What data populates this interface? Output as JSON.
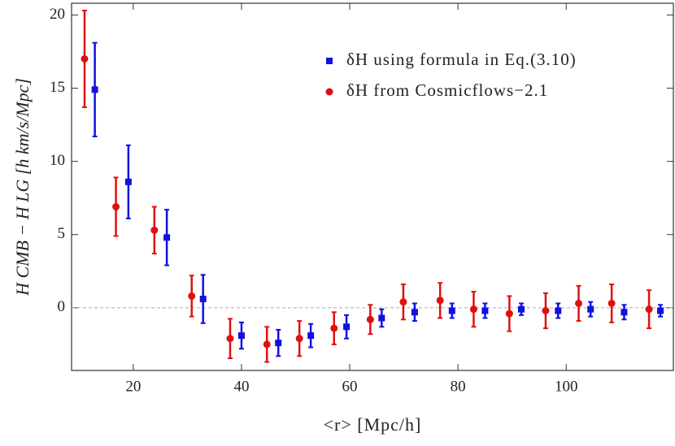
{
  "chart_data": {
    "type": "errorbar_scatter",
    "xlabel": "<r> [Mpc/h]",
    "ylabel": "H CMB − H LG   [h km/s/Mpc]",
    "xlim": [
      8.6,
      119.8
    ],
    "ylim": [
      -4.28,
      20.8
    ],
    "xticks": [
      20,
      40,
      60,
      80,
      100
    ],
    "yticks": [
      0,
      5,
      10,
      15,
      20
    ],
    "reference_line": 0,
    "series": [
      {
        "name": "δH  using formula in Eq.(3.10)",
        "color": "#1010e0",
        "marker": "square",
        "x": [
          12.9,
          19.1,
          26.2,
          32.9,
          40.0,
          46.8,
          52.8,
          59.4,
          65.9,
          72.0,
          78.9,
          85.0,
          91.7,
          98.5,
          104.5,
          110.7,
          117.4
        ],
        "values": [
          14.9,
          8.6,
          4.8,
          0.6,
          -1.9,
          -2.4,
          -1.9,
          -1.3,
          -0.7,
          -0.3,
          -0.2,
          -0.2,
          -0.1,
          -0.2,
          -0.1,
          -0.3,
          -0.2
        ],
        "errors": [
          3.2,
          2.5,
          1.9,
          1.65,
          0.9,
          0.9,
          0.8,
          0.8,
          0.6,
          0.6,
          0.5,
          0.5,
          0.4,
          0.5,
          0.5,
          0.5,
          0.4
        ]
      },
      {
        "name": "δH  from Cosmicflows−2.1",
        "color": "#e01010",
        "marker": "circle",
        "x": [
          11.0,
          16.8,
          23.9,
          30.8,
          37.9,
          44.7,
          50.7,
          57.1,
          63.8,
          69.9,
          76.7,
          82.9,
          89.5,
          96.2,
          102.3,
          108.4,
          115.3
        ],
        "values": [
          17.0,
          6.9,
          5.3,
          0.8,
          -2.1,
          -2.5,
          -2.1,
          -1.4,
          -0.8,
          0.4,
          0.5,
          -0.1,
          -0.4,
          -0.2,
          0.3,
          0.3,
          -0.1
        ],
        "errors": [
          3.3,
          2.0,
          1.6,
          1.4,
          1.35,
          1.2,
          1.2,
          1.1,
          1.0,
          1.2,
          1.2,
          1.2,
          1.2,
          1.2,
          1.2,
          1.3,
          1.3
        ]
      }
    ]
  }
}
